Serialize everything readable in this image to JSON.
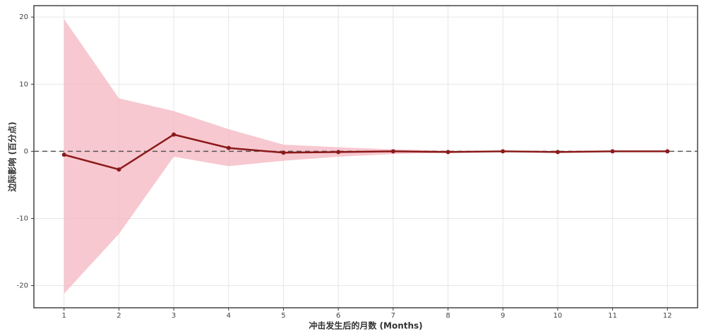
{
  "chart_data": {
    "type": "line",
    "x_label": "冲击发生后的月数 (Months)",
    "y_label": "边际影响 (百分点)",
    "x": [
      1,
      2,
      3,
      4,
      5,
      6,
      7,
      8,
      9,
      10,
      11,
      12
    ],
    "series": [
      {
        "color": "#8b1a1a",
        "values": [
          -0.5,
          -2.7,
          2.5,
          0.5,
          -0.2,
          -0.1,
          0,
          -0.1,
          0,
          -0.1,
          0,
          0
        ]
      }
    ],
    "band": {
      "color": "#f4b6c0",
      "upper": [
        19.7,
        7.9,
        6.0,
        3.3,
        1.0,
        0.6,
        0.3,
        0.1,
        0.05,
        0.05,
        0.05,
        0.05
      ],
      "lower": [
        -21.2,
        -12.3,
        -0.8,
        -2.2,
        -1.4,
        -0.8,
        -0.4,
        -0.2,
        -0.1,
        -0.1,
        -0.1,
        -0.1
      ]
    },
    "reference_line": 0,
    "xlim": [
      0.45,
      12.55
    ],
    "xticks": [
      1,
      2,
      3,
      4,
      5,
      6,
      7,
      8,
      9,
      10,
      11,
      12
    ],
    "ylim": [
      -23.3,
      21.7
    ],
    "yticks": [
      -20,
      -10,
      0,
      10,
      20
    ],
    "grid": true
  }
}
